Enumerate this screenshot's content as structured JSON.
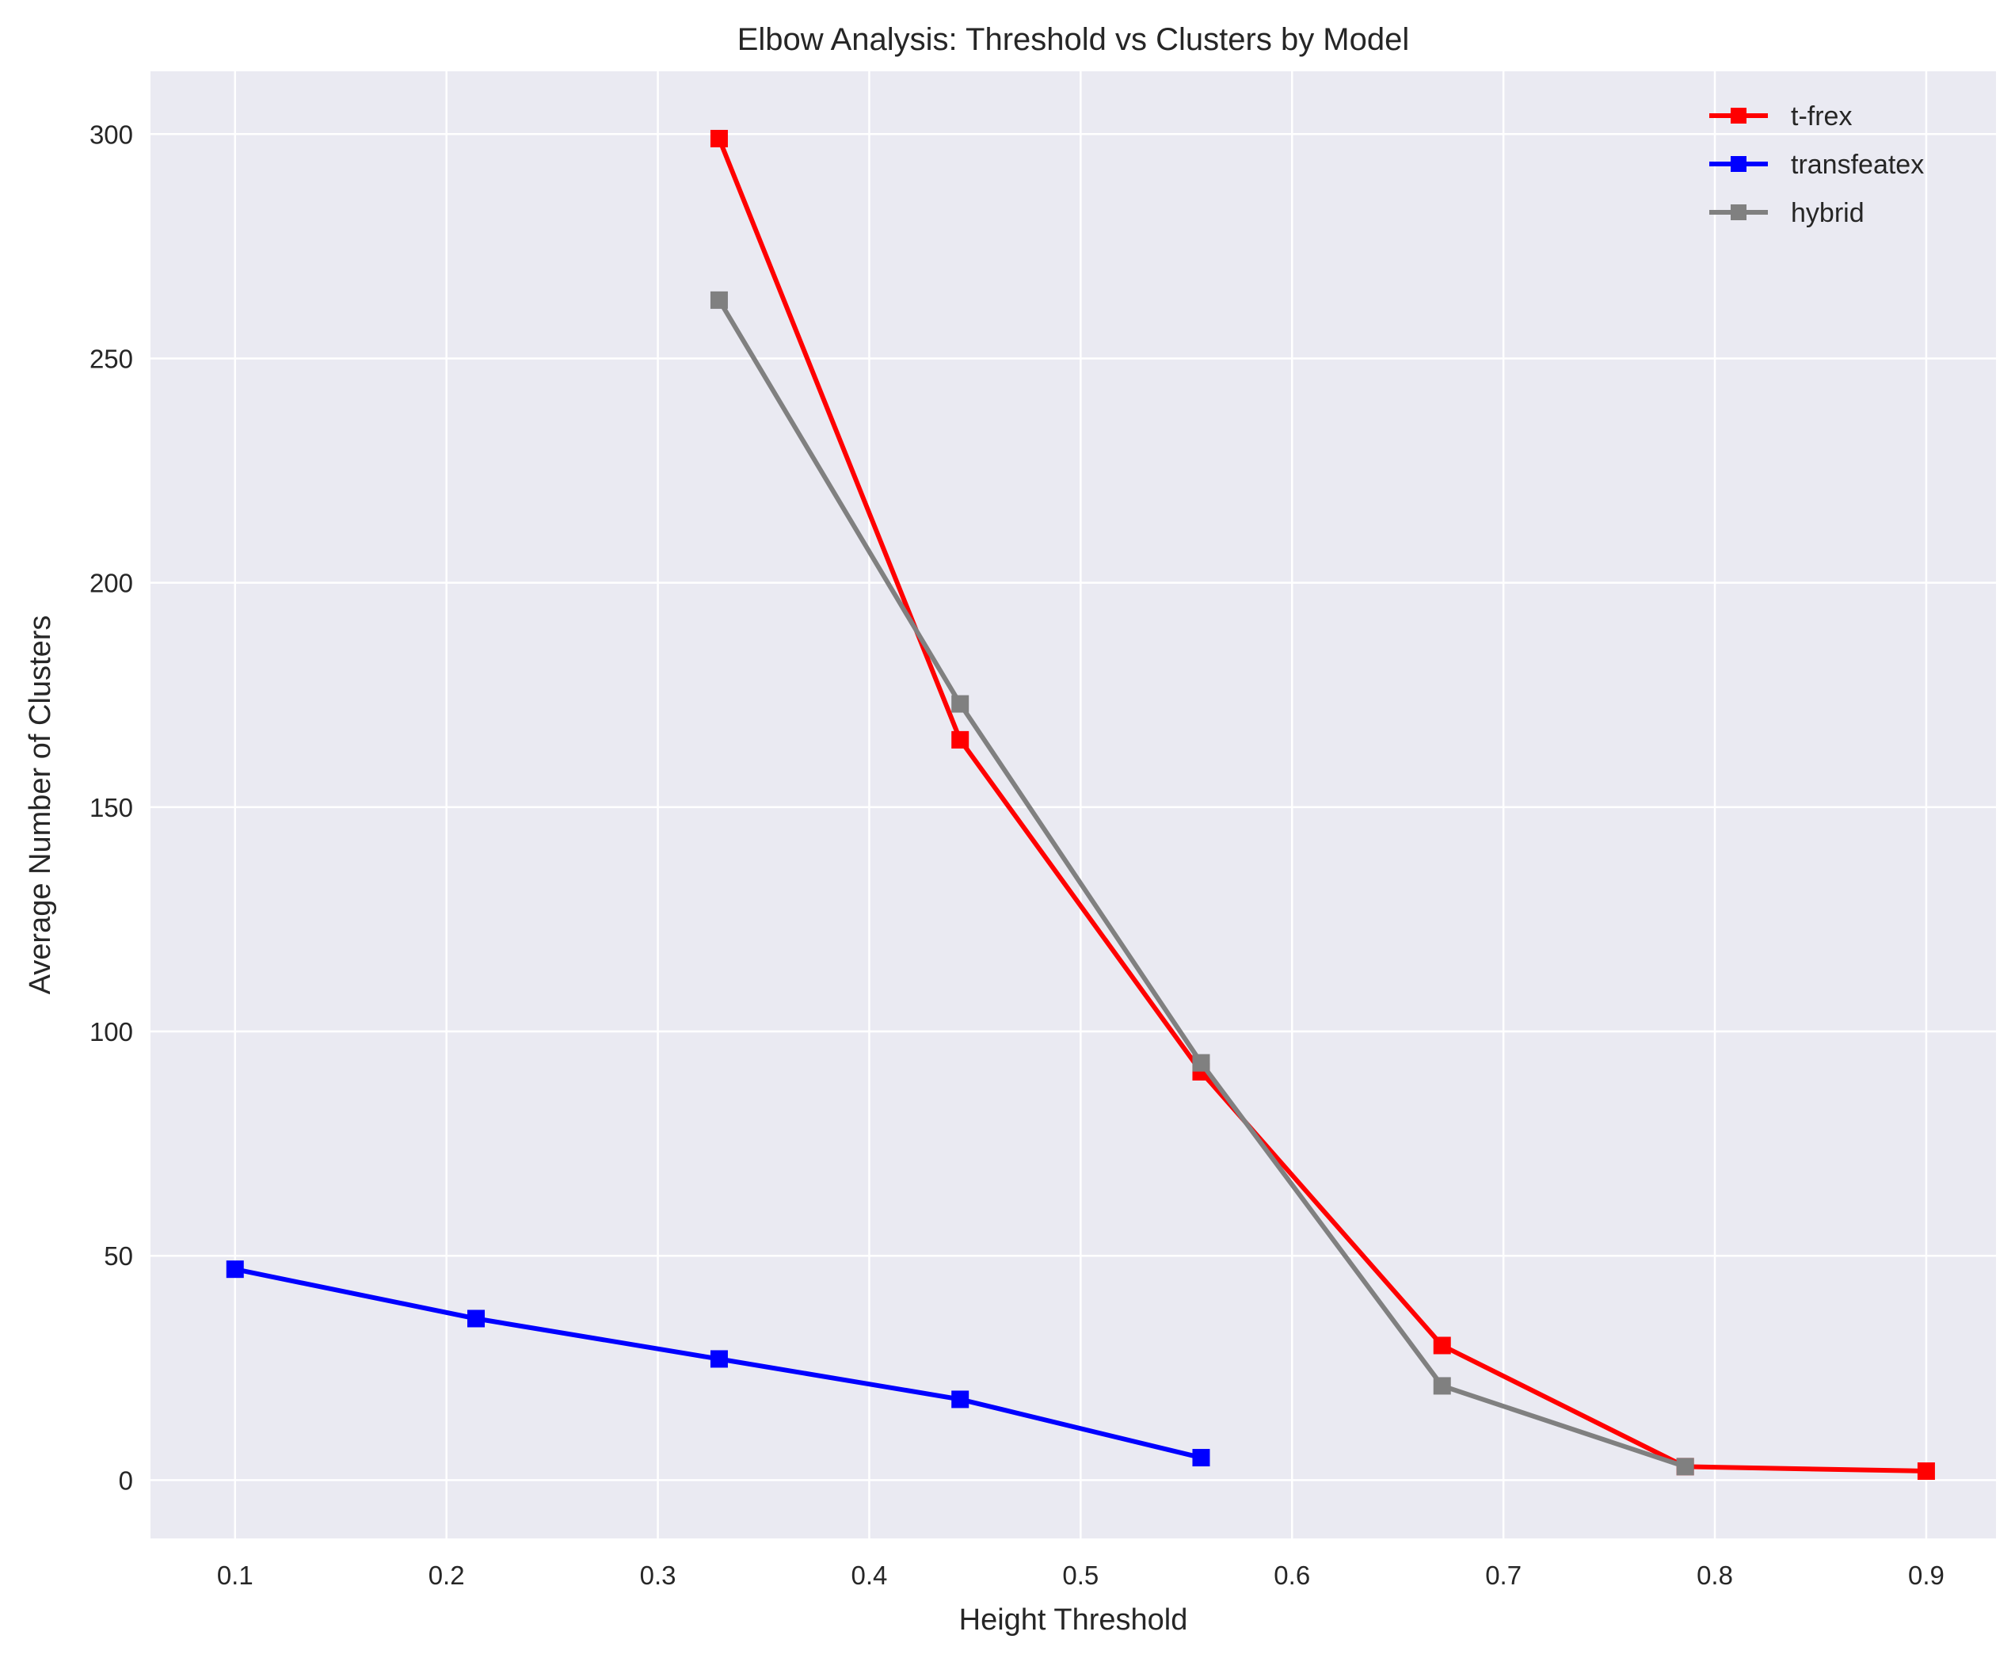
{
  "chart_data": {
    "type": "line",
    "title": "Elbow Analysis: Threshold vs Clusters by Model",
    "xlabel": "Height Threshold",
    "ylabel": "Average Number of Clusters",
    "xlim": [
      0.06,
      0.933
    ],
    "ylim": [
      -13,
      314
    ],
    "xticks": [
      0.1,
      0.2,
      0.3,
      0.4,
      0.5,
      0.6,
      0.7,
      0.8,
      0.9
    ],
    "xtick_labels": [
      "0.1",
      "0.2",
      "0.3",
      "0.4",
      "0.5",
      "0.6",
      "0.7",
      "0.8",
      "0.9"
    ],
    "yticks": [
      0,
      50,
      100,
      150,
      200,
      250,
      300
    ],
    "ytick_labels": [
      "0",
      "50",
      "100",
      "150",
      "200",
      "250",
      "300"
    ],
    "grid": true,
    "legend_position": "top-right",
    "marker": "square",
    "series": [
      {
        "name": "t-frex",
        "color": "#ff0000",
        "x": [
          0.329,
          0.443,
          0.557,
          0.671,
          0.786,
          0.9
        ],
        "y": [
          299,
          165,
          91,
          30,
          3,
          2
        ]
      },
      {
        "name": "transfeatex",
        "color": "#0000ff",
        "x": [
          0.1,
          0.214,
          0.329,
          0.443,
          0.557
        ],
        "y": [
          47,
          36,
          27,
          18,
          5
        ]
      },
      {
        "name": "hybrid",
        "color": "#808080",
        "x": [
          0.329,
          0.443,
          0.557,
          0.671,
          0.786
        ],
        "y": [
          263,
          173,
          93,
          21,
          3
        ]
      }
    ]
  }
}
